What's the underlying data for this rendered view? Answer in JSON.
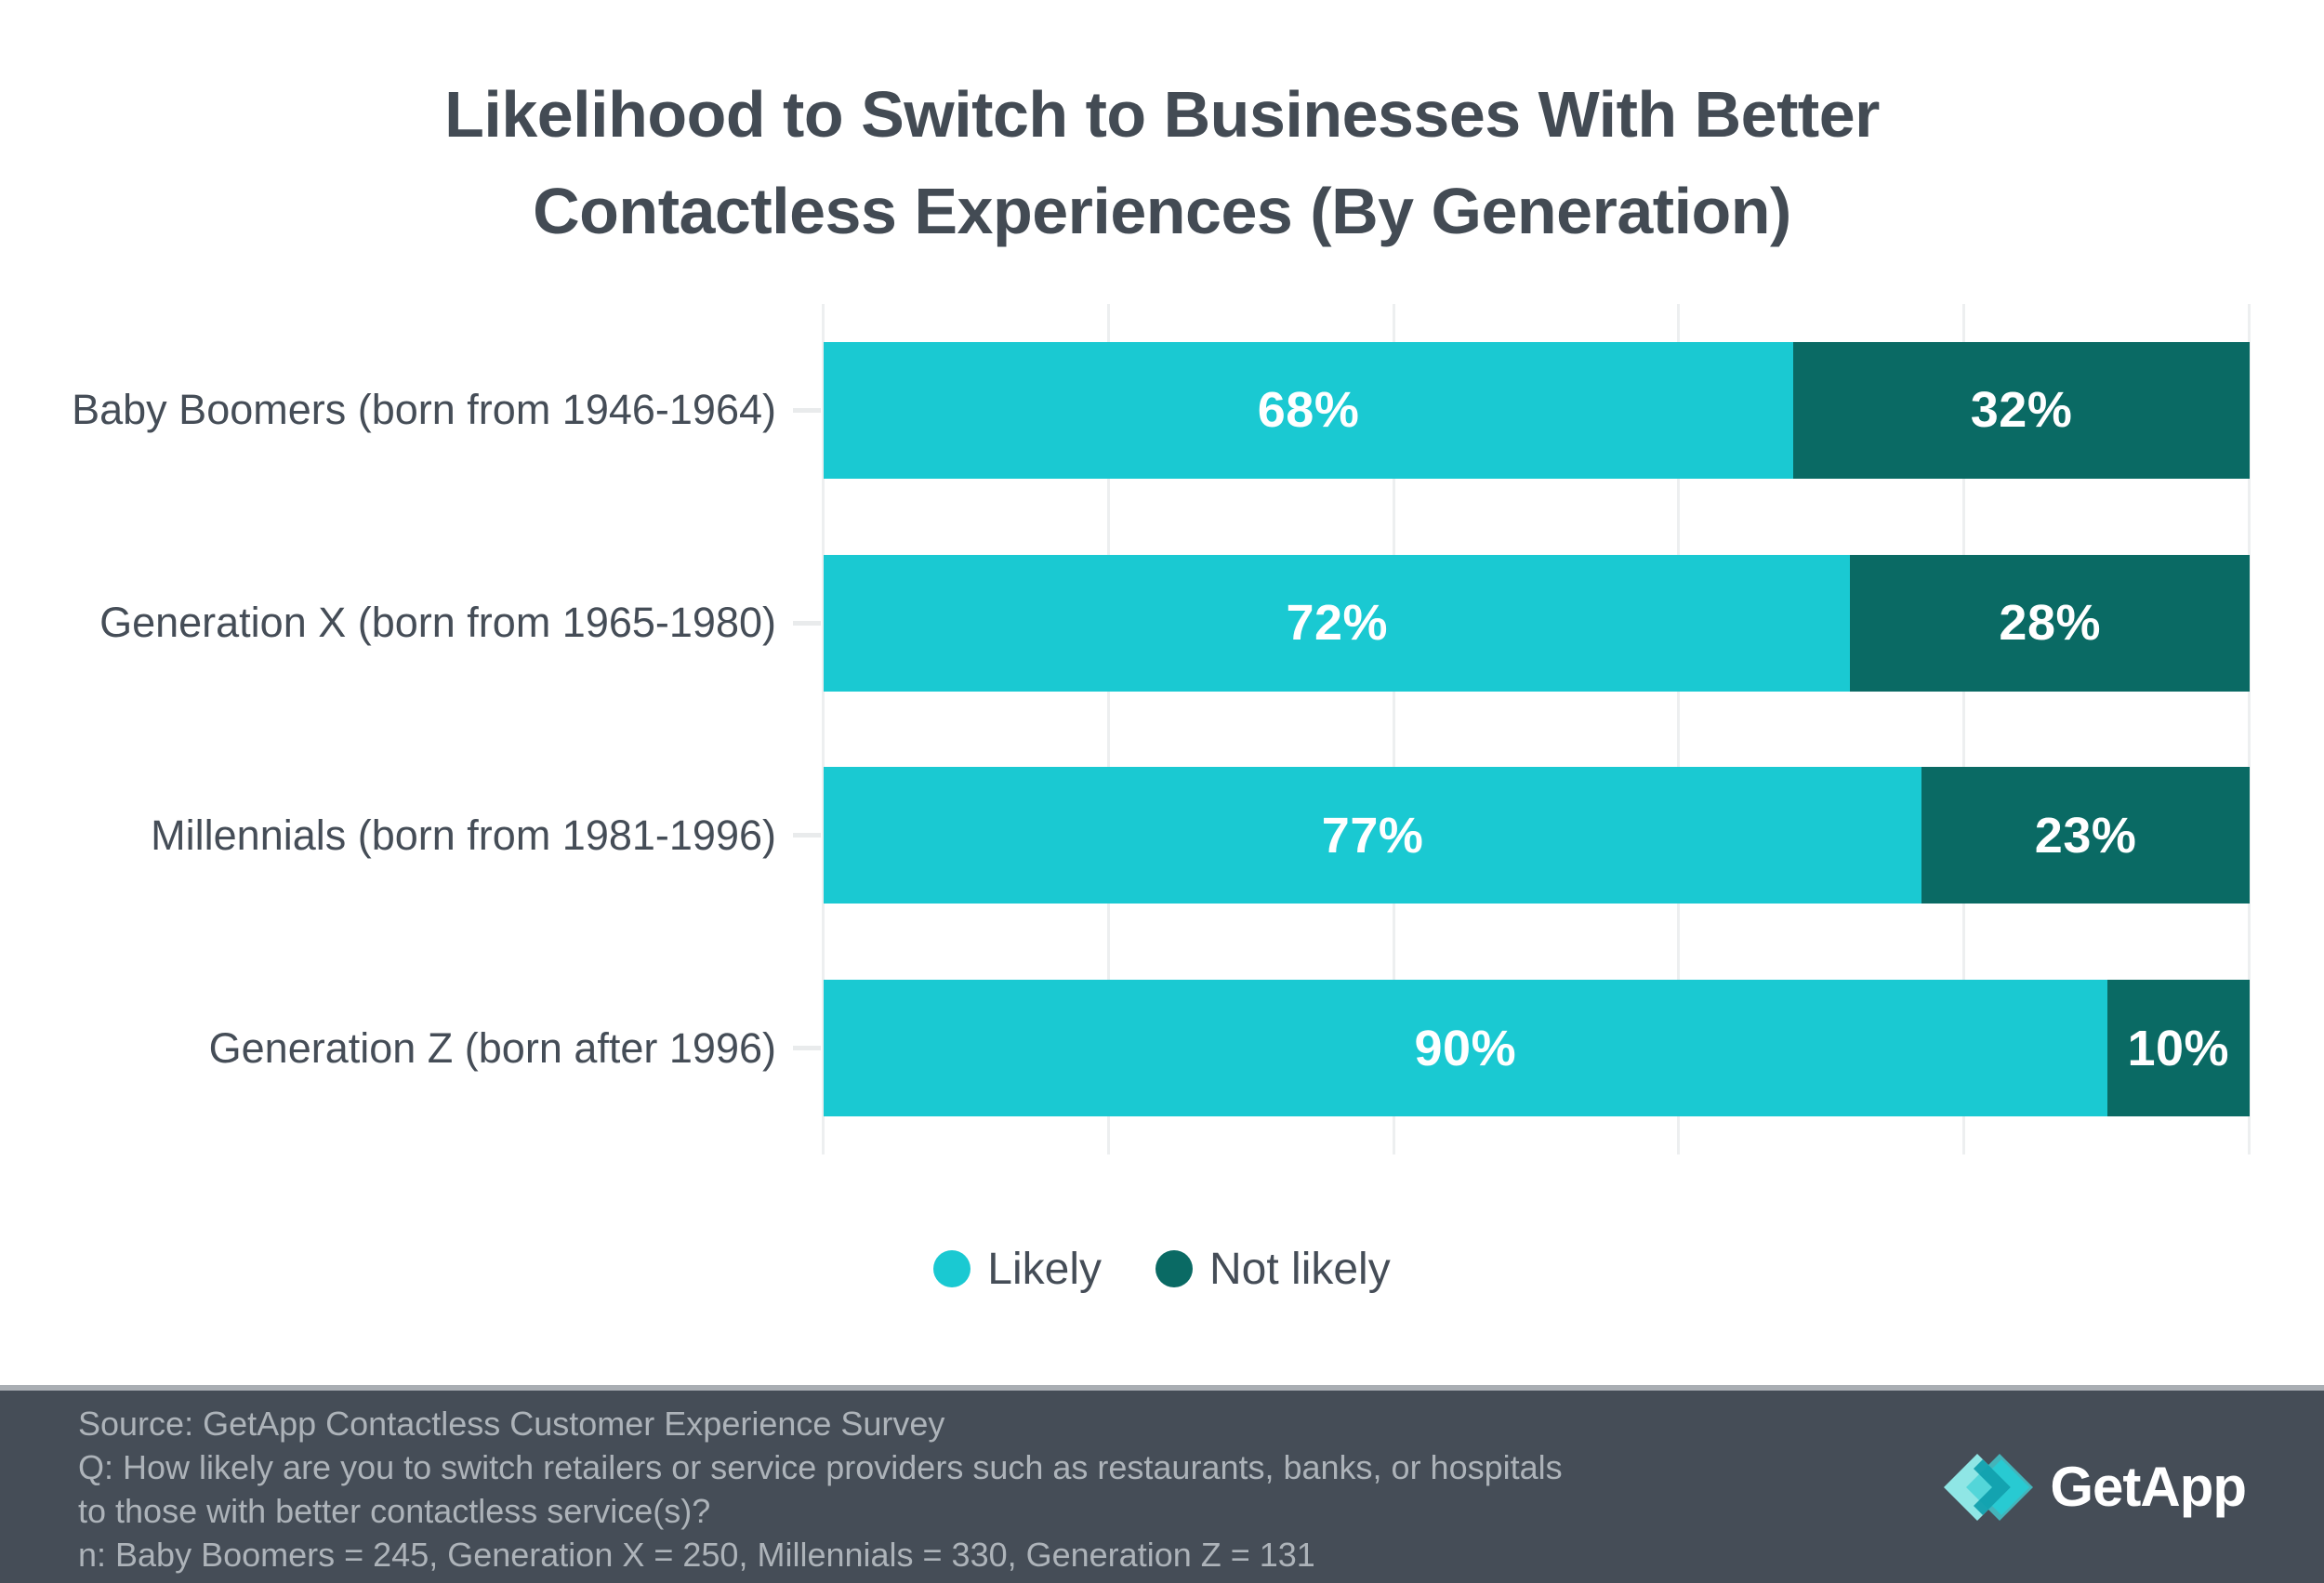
{
  "title": {
    "line1": "Likelihood to Switch to Businesses With Better",
    "line2": "Contactless Experiences (By Generation)"
  },
  "colors": {
    "likely": "#1AC9D2",
    "not_likely": "#0A6A64",
    "title_text": "#434B54",
    "category_text": "#454D57",
    "gridline": "#EDEFF0",
    "bar_value_text": "#FFFFFF",
    "footer_background": "#454D57",
    "footer_separator": "#A9AEB3",
    "footer_text": "#ADB3B9"
  },
  "chart_data": {
    "type": "bar",
    "orientation": "horizontal",
    "stacked": true,
    "categories": [
      "Baby Boomers (born from 1946-1964)",
      "Generation X (born from 1965-1980)",
      "Millennials (born from 1981-1996)",
      "Generation Z (born after 1996)"
    ],
    "series": [
      {
        "name": "Likely",
        "color": "#1AC9D2",
        "values": [
          68,
          72,
          77,
          90
        ]
      },
      {
        "name": "Not likely",
        "color": "#0A6A64",
        "values": [
          32,
          28,
          23,
          10
        ]
      }
    ],
    "value_label_format": "percent",
    "xlim": [
      0,
      100
    ],
    "gridlines_percent": [
      0,
      20,
      40,
      60,
      80,
      100
    ],
    "grid": true,
    "legend_position": "bottom"
  },
  "legend": {
    "items": [
      {
        "label": "Likely",
        "color": "#1AC9D2"
      },
      {
        "label": "Not likely",
        "color": "#0A6A64"
      }
    ]
  },
  "icons": {
    "legend_dot": "filled-circle",
    "logo_mark": "getapp-overlapping-diamonds-with-chevrons"
  },
  "footer": {
    "source": "Source: GetApp Contactless Customer Experience Survey",
    "question": "Q: How likely are you to switch retailers or service providers such as restaurants, banks, or hospitals\nto those with better contactless service(s)?",
    "sample": "n: Baby Boomers = 245, Generation X = 250, Millennials = 330, Generation Z = 131",
    "brand": "GetApp"
  }
}
